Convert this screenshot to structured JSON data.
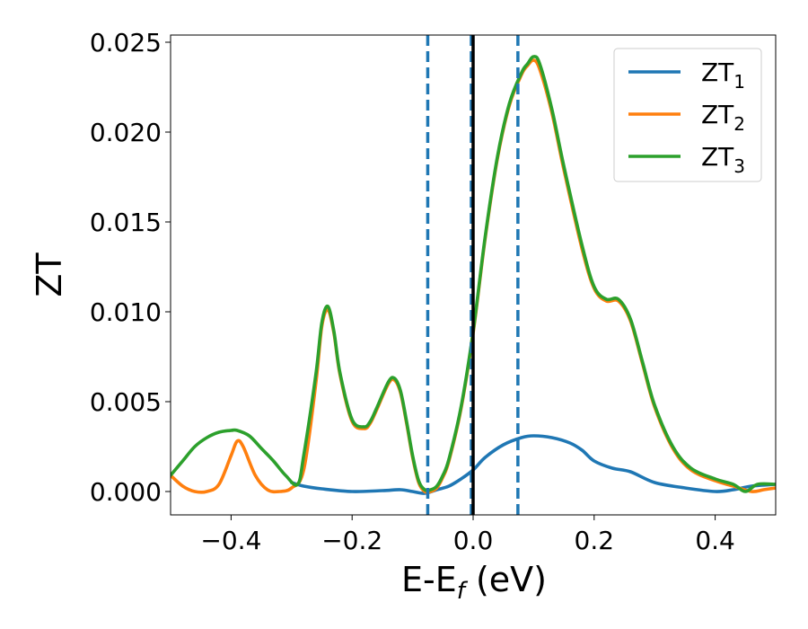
{
  "chart_data": {
    "type": "line",
    "xlabel": "E-E",
    "xlabel_sub": "f",
    "xlabel_unit": " (eV)",
    "ylabel": "ZT",
    "xlim": [
      -0.5,
      0.5
    ],
    "ylim": [
      -0.0013,
      0.0254
    ],
    "xticks": [
      -0.4,
      -0.2,
      0.0,
      0.2,
      0.4
    ],
    "xtick_labels": [
      "−0.4",
      "−0.2",
      "0.0",
      "0.2",
      "0.4"
    ],
    "yticks": [
      0.0,
      0.005,
      0.01,
      0.015,
      0.02,
      0.025
    ],
    "ytick_labels": [
      "0.000",
      "0.005",
      "0.010",
      "0.015",
      "0.020",
      "0.025"
    ],
    "grid": false,
    "legend_position": "top-right",
    "vlines": [
      {
        "x": -0.075,
        "style": "dashed",
        "color": "#1f77b4"
      },
      {
        "x": -0.003,
        "style": "dashed",
        "color": "#1f77b4"
      },
      {
        "x": 0.0,
        "style": "solid",
        "color": "#000000"
      },
      {
        "x": 0.074,
        "style": "dashed",
        "color": "#1f77b4"
      }
    ],
    "series": [
      {
        "name": "ZT",
        "sub": "1",
        "color": "#1f77b4",
        "x": [
          -0.3,
          -0.28,
          -0.25,
          -0.2,
          -0.15,
          -0.12,
          -0.1,
          -0.08,
          -0.06,
          -0.04,
          -0.02,
          0.0,
          0.02,
          0.05,
          0.08,
          0.1,
          0.13,
          0.16,
          0.18,
          0.2,
          0.23,
          0.26,
          0.3,
          0.35,
          0.4,
          0.43,
          0.46,
          0.5
        ],
        "y": [
          0.0005,
          0.0003,
          0.00015,
          0.0,
          5e-05,
          0.0001,
          0.0,
          -0.0001,
          0.0001,
          0.0003,
          0.0007,
          0.0012,
          0.0019,
          0.0026,
          0.003,
          0.0031,
          0.003,
          0.0027,
          0.0023,
          0.0017,
          0.0013,
          0.0011,
          0.0005,
          0.0002,
          0.0,
          0.0001,
          0.0003,
          0.0004
        ]
      },
      {
        "name": "ZT",
        "sub": "2",
        "color": "#ff7f0e",
        "x": [
          -0.5,
          -0.48,
          -0.46,
          -0.44,
          -0.42,
          -0.4,
          -0.39,
          -0.38,
          -0.36,
          -0.34,
          -0.32,
          -0.3,
          -0.28,
          -0.26,
          -0.25,
          -0.24,
          -0.23,
          -0.22,
          -0.2,
          -0.18,
          -0.17,
          -0.16,
          -0.14,
          -0.13,
          -0.12,
          -0.11,
          -0.1,
          -0.09,
          -0.08,
          -0.07,
          -0.06,
          -0.05,
          -0.04,
          -0.02,
          0.0,
          0.02,
          0.04,
          0.06,
          0.08,
          0.09,
          0.1,
          0.11,
          0.13,
          0.15,
          0.18,
          0.2,
          0.22,
          0.24,
          0.26,
          0.28,
          0.3,
          0.33,
          0.36,
          0.4,
          0.43,
          0.46,
          0.48,
          0.5
        ],
        "y": [
          0.0009,
          0.0003,
          0.0,
          0.0,
          0.0004,
          0.002,
          0.0028,
          0.0025,
          0.0009,
          0.0001,
          0.0,
          0.0002,
          0.0012,
          0.006,
          0.0092,
          0.0101,
          0.0088,
          0.0065,
          0.0039,
          0.0035,
          0.0038,
          0.0045,
          0.006,
          0.0062,
          0.0055,
          0.0038,
          0.0019,
          0.0005,
          0.0,
          0.0,
          0.0002,
          0.0008,
          0.0017,
          0.0046,
          0.0088,
          0.0141,
          0.0185,
          0.0215,
          0.0232,
          0.0237,
          0.024,
          0.0235,
          0.0211,
          0.0179,
          0.0135,
          0.0113,
          0.0106,
          0.0106,
          0.0095,
          0.0071,
          0.0047,
          0.0024,
          0.0012,
          0.0006,
          0.0003,
          0.0,
          0.0001,
          0.0002
        ]
      },
      {
        "name": "ZT",
        "sub": "3",
        "color": "#2ca02c",
        "x": [
          -0.5,
          -0.48,
          -0.46,
          -0.44,
          -0.42,
          -0.4,
          -0.39,
          -0.37,
          -0.35,
          -0.33,
          -0.31,
          -0.29,
          -0.28,
          -0.26,
          -0.25,
          -0.24,
          -0.23,
          -0.22,
          -0.2,
          -0.18,
          -0.17,
          -0.16,
          -0.14,
          -0.13,
          -0.12,
          -0.11,
          -0.1,
          -0.09,
          -0.08,
          -0.07,
          -0.06,
          -0.05,
          -0.04,
          -0.02,
          0.0,
          0.02,
          0.04,
          0.06,
          0.08,
          0.09,
          0.1,
          0.11,
          0.13,
          0.15,
          0.18,
          0.2,
          0.22,
          0.24,
          0.26,
          0.28,
          0.3,
          0.33,
          0.36,
          0.4,
          0.43,
          0.45,
          0.47,
          0.5
        ],
        "y": [
          0.0009,
          0.0017,
          0.0025,
          0.003,
          0.0033,
          0.0034,
          0.0034,
          0.0031,
          0.0024,
          0.0017,
          0.0009,
          0.0004,
          0.002,
          0.0065,
          0.0094,
          0.0103,
          0.0089,
          0.0066,
          0.004,
          0.0036,
          0.0039,
          0.0046,
          0.0061,
          0.0063,
          0.0056,
          0.0039,
          0.002,
          0.0006,
          0.0001,
          0.0001,
          0.0003,
          0.0009,
          0.0018,
          0.0047,
          0.0089,
          0.0142,
          0.0186,
          0.0216,
          0.0233,
          0.0238,
          0.0242,
          0.0238,
          0.0213,
          0.0181,
          0.0137,
          0.0114,
          0.0107,
          0.0107,
          0.0096,
          0.0072,
          0.0048,
          0.0025,
          0.0013,
          0.0007,
          0.0004,
          0.0,
          0.0004,
          0.0004
        ]
      }
    ]
  }
}
